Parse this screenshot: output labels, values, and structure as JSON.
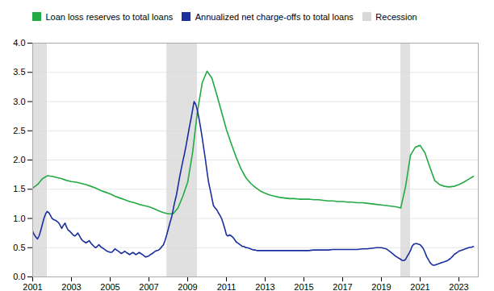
{
  "chart_data": {
    "type": "line",
    "series": [
      {
        "name": "Loan loss reserves to total loans",
        "color": "#22aa44",
        "x": [
          2001.0,
          2001.25,
          2001.5,
          2001.75,
          2002.0,
          2002.25,
          2002.5,
          2002.75,
          2003.0,
          2003.25,
          2003.5,
          2003.75,
          2004.0,
          2004.25,
          2004.5,
          2004.75,
          2005.0,
          2005.25,
          2005.5,
          2005.75,
          2006.0,
          2006.25,
          2006.5,
          2006.75,
          2007.0,
          2007.25,
          2007.5,
          2007.75,
          2008.0,
          2008.25,
          2008.5,
          2008.75,
          2009.0,
          2009.25,
          2009.5,
          2009.75,
          2010.0,
          2010.25,
          2010.5,
          2010.75,
          2011.0,
          2011.25,
          2011.5,
          2011.75,
          2012.0,
          2012.25,
          2012.5,
          2012.75,
          2013.0,
          2013.25,
          2013.5,
          2013.75,
          2014.0,
          2014.25,
          2014.5,
          2014.75,
          2015.0,
          2015.25,
          2015.5,
          2015.75,
          2016.0,
          2016.25,
          2016.5,
          2016.75,
          2017.0,
          2017.25,
          2017.5,
          2017.75,
          2018.0,
          2018.25,
          2018.5,
          2018.75,
          2019.0,
          2019.25,
          2019.5,
          2019.75,
          2020.0,
          2020.25,
          2020.5,
          2020.75,
          2021.0,
          2021.25,
          2021.5,
          2021.75,
          2022.0,
          2022.25,
          2022.5,
          2022.75,
          2023.0,
          2023.25,
          2023.5,
          2023.75
        ],
        "values": [
          1.52,
          1.58,
          1.68,
          1.73,
          1.72,
          1.7,
          1.68,
          1.65,
          1.63,
          1.62,
          1.6,
          1.58,
          1.55,
          1.52,
          1.48,
          1.45,
          1.42,
          1.38,
          1.35,
          1.32,
          1.29,
          1.27,
          1.24,
          1.22,
          1.2,
          1.17,
          1.13,
          1.1,
          1.08,
          1.08,
          1.18,
          1.38,
          1.62,
          2.12,
          2.82,
          3.32,
          3.52,
          3.4,
          3.12,
          2.82,
          2.52,
          2.28,
          2.05,
          1.85,
          1.7,
          1.6,
          1.53,
          1.47,
          1.43,
          1.4,
          1.38,
          1.36,
          1.35,
          1.34,
          1.34,
          1.33,
          1.33,
          1.33,
          1.32,
          1.32,
          1.31,
          1.3,
          1.3,
          1.29,
          1.29,
          1.28,
          1.28,
          1.27,
          1.27,
          1.26,
          1.25,
          1.24,
          1.23,
          1.22,
          1.21,
          1.2,
          1.18,
          1.55,
          2.08,
          2.22,
          2.25,
          2.12,
          1.88,
          1.65,
          1.58,
          1.55,
          1.54,
          1.55,
          1.58,
          1.62,
          1.67,
          1.72
        ]
      },
      {
        "name": "Annualized net charge-offs to total loans",
        "color": "#1a2f9f",
        "x": [
          2001.0,
          2001.08,
          2001.17,
          2001.25,
          2001.33,
          2001.42,
          2001.5,
          2001.58,
          2001.67,
          2001.75,
          2001.83,
          2001.92,
          2002.0,
          2002.08,
          2002.17,
          2002.25,
          2002.33,
          2002.42,
          2002.5,
          2002.58,
          2002.67,
          2002.75,
          2002.83,
          2002.92,
          2003.0,
          2003.08,
          2003.17,
          2003.25,
          2003.33,
          2003.42,
          2003.5,
          2003.58,
          2003.67,
          2003.75,
          2003.83,
          2003.92,
          2004.0,
          2004.08,
          2004.17,
          2004.25,
          2004.33,
          2004.42,
          2004.5,
          2004.58,
          2004.67,
          2004.75,
          2004.83,
          2004.92,
          2005.0,
          2005.08,
          2005.17,
          2005.25,
          2005.33,
          2005.42,
          2005.5,
          2005.58,
          2005.67,
          2005.75,
          2005.83,
          2005.92,
          2006.0,
          2006.08,
          2006.17,
          2006.25,
          2006.33,
          2006.42,
          2006.5,
          2006.58,
          2006.67,
          2006.75,
          2006.83,
          2006.92,
          2007.0,
          2007.08,
          2007.17,
          2007.25,
          2007.33,
          2007.42,
          2007.5,
          2007.58,
          2007.67,
          2007.75,
          2007.83,
          2007.92,
          2008.0,
          2008.08,
          2008.17,
          2008.25,
          2008.33,
          2008.42,
          2008.5,
          2008.58,
          2008.67,
          2008.75,
          2008.83,
          2008.92,
          2009.0,
          2009.08,
          2009.17,
          2009.25,
          2009.33,
          2009.42,
          2009.5,
          2009.58,
          2009.67,
          2009.75,
          2009.83,
          2009.92,
          2010.0,
          2010.08,
          2010.17,
          2010.25,
          2010.33,
          2010.42,
          2010.5,
          2010.58,
          2010.67,
          2010.75,
          2010.83,
          2010.92,
          2011.0,
          2011.08,
          2011.17,
          2011.25,
          2011.33,
          2011.42,
          2011.5,
          2011.58,
          2011.67,
          2011.75,
          2011.83,
          2011.92,
          2012.0,
          2012.08,
          2012.17,
          2012.25,
          2012.33,
          2012.42,
          2012.5,
          2012.58,
          2012.67,
          2012.75,
          2012.83,
          2012.92,
          2013.0,
          2013.25,
          2013.5,
          2013.75,
          2014.0,
          2014.25,
          2014.5,
          2014.75,
          2015.0,
          2015.25,
          2015.5,
          2015.75,
          2016.0,
          2016.25,
          2016.5,
          2016.75,
          2017.0,
          2017.25,
          2017.5,
          2017.75,
          2018.0,
          2018.25,
          2018.5,
          2018.75,
          2019.0,
          2019.25,
          2019.5,
          2019.75,
          2020.0,
          2020.08,
          2020.17,
          2020.25,
          2020.33,
          2020.42,
          2020.5,
          2020.58,
          2020.67,
          2020.75,
          2020.83,
          2020.92,
          2021.0,
          2021.08,
          2021.17,
          2021.25,
          2021.33,
          2021.42,
          2021.5,
          2021.58,
          2021.67,
          2021.75,
          2021.83,
          2021.92,
          2022.0,
          2022.08,
          2022.17,
          2022.25,
          2022.33,
          2022.42,
          2022.5,
          2022.58,
          2022.67,
          2022.75,
          2022.83,
          2022.92,
          2023.0,
          2023.17,
          2023.33,
          2023.5,
          2023.67,
          2023.75
        ],
        "values": [
          0.78,
          0.72,
          0.68,
          0.65,
          0.7,
          0.8,
          0.9,
          1.0,
          1.08,
          1.12,
          1.1,
          1.05,
          1.0,
          0.98,
          0.97,
          0.95,
          0.93,
          0.88,
          0.83,
          0.88,
          0.92,
          0.85,
          0.8,
          0.78,
          0.75,
          0.72,
          0.7,
          0.72,
          0.75,
          0.7,
          0.65,
          0.62,
          0.6,
          0.58,
          0.6,
          0.62,
          0.58,
          0.55,
          0.52,
          0.5,
          0.52,
          0.55,
          0.52,
          0.5,
          0.48,
          0.46,
          0.44,
          0.43,
          0.42,
          0.42,
          0.45,
          0.48,
          0.46,
          0.44,
          0.42,
          0.4,
          0.42,
          0.44,
          0.42,
          0.4,
          0.38,
          0.4,
          0.42,
          0.4,
          0.38,
          0.4,
          0.42,
          0.4,
          0.38,
          0.36,
          0.34,
          0.35,
          0.36,
          0.38,
          0.4,
          0.42,
          0.44,
          0.45,
          0.46,
          0.48,
          0.52,
          0.55,
          0.62,
          0.72,
          0.82,
          0.92,
          1.02,
          1.15,
          1.28,
          1.4,
          1.55,
          1.7,
          1.85,
          1.98,
          2.1,
          2.25,
          2.4,
          2.55,
          2.7,
          2.85,
          3.0,
          2.95,
          2.85,
          2.72,
          2.55,
          2.38,
          2.2,
          2.0,
          1.8,
          1.62,
          1.48,
          1.35,
          1.22,
          1.18,
          1.15,
          1.1,
          1.05,
          1.0,
          0.92,
          0.82,
          0.72,
          0.7,
          0.72,
          0.7,
          0.68,
          0.64,
          0.6,
          0.58,
          0.56,
          0.54,
          0.52,
          0.52,
          0.5,
          0.5,
          0.49,
          0.48,
          0.47,
          0.46,
          0.46,
          0.45,
          0.45,
          0.45,
          0.45,
          0.45,
          0.45,
          0.45,
          0.45,
          0.45,
          0.45,
          0.45,
          0.45,
          0.45,
          0.45,
          0.45,
          0.46,
          0.46,
          0.46,
          0.46,
          0.47,
          0.47,
          0.47,
          0.47,
          0.47,
          0.47,
          0.48,
          0.48,
          0.49,
          0.5,
          0.5,
          0.48,
          0.42,
          0.35,
          0.3,
          0.28,
          0.28,
          0.3,
          0.35,
          0.4,
          0.45,
          0.52,
          0.56,
          0.57,
          0.57,
          0.56,
          0.55,
          0.52,
          0.48,
          0.42,
          0.35,
          0.3,
          0.25,
          0.22,
          0.2,
          0.2,
          0.21,
          0.22,
          0.23,
          0.24,
          0.25,
          0.26,
          0.27,
          0.28,
          0.3,
          0.32,
          0.35,
          0.38,
          0.4,
          0.42,
          0.44,
          0.46,
          0.48,
          0.5,
          0.51,
          0.52
        ]
      }
    ],
    "bands": [
      {
        "name": "Recession",
        "color": "#d8d8d8",
        "ranges": [
          [
            2001.0,
            2001.75
          ],
          [
            2007.92,
            2009.5
          ],
          [
            2020.0,
            2020.5
          ]
        ]
      }
    ],
    "xlim": [
      2001,
      2024
    ],
    "xticks": [
      2001,
      2003,
      2005,
      2007,
      2009,
      2011,
      2013,
      2015,
      2017,
      2019,
      2021,
      2023
    ],
    "ylim": [
      0.0,
      4.0
    ],
    "yticks": [
      {
        "value": 0,
        "label": "0.0"
      },
      0.5,
      {
        "value": 1,
        "label": "1.0"
      },
      1.5,
      {
        "value": 2,
        "label": "2.0"
      },
      2.5,
      {
        "value": 3,
        "label": "3.0"
      },
      3.5,
      {
        "value": 4,
        "label": "4.0"
      }
    ],
    "grid": "y",
    "legend": "top-left"
  }
}
